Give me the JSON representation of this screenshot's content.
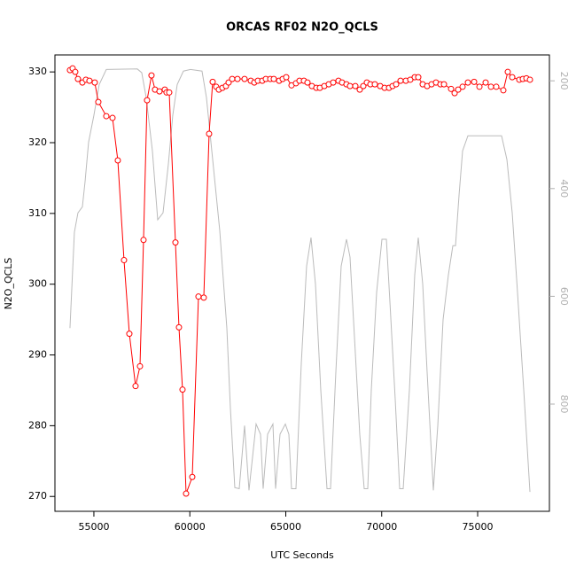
{
  "chart_data": {
    "type": "line",
    "title": "ORCAS RF02 N2O_QCLS",
    "x_label": "UTC Seconds",
    "y_label": "N2O_QCLS",
    "xlim": [
      52970,
      78740
    ],
    "ylim": [
      267.9,
      332.4
    ],
    "y2lim": [
      999,
      152
    ],
    "xticks": [
      55000,
      60000,
      65000,
      70000,
      75000
    ],
    "yticks": [
      270,
      280,
      290,
      300,
      310,
      320,
      330
    ],
    "y2ticks": [
      200,
      400,
      600,
      800
    ],
    "series": [
      {
        "color": "#bbbbbb",
        "axis": "y2",
        "markers": false,
        "x": [
          53753,
          53984,
          54169,
          54400,
          54538,
          54723,
          55000,
          55277,
          55647,
          57263,
          57494,
          57725,
          58049,
          58326,
          58603,
          58880,
          59111,
          59342,
          59665,
          60035,
          60635,
          60866,
          61190,
          61559,
          61929,
          62113,
          62344,
          62575,
          62852,
          63083,
          63453,
          63684,
          63822,
          64053,
          64330,
          64469,
          64700,
          64977,
          65162,
          65300,
          65531,
          65808,
          66085,
          66316,
          66547,
          66824,
          67148,
          67332,
          67609,
          67887,
          68164,
          68348,
          68579,
          68856,
          69087,
          69272,
          69457,
          69734,
          70012,
          70243,
          70427,
          70704,
          70935,
          71120,
          71443,
          71721,
          71905,
          72136,
          72367,
          72691,
          72922,
          73199,
          73476,
          73707,
          73846,
          74031,
          74215,
          74492,
          76247,
          76524,
          76801,
          77078,
          77402,
          77725
        ],
        "values": [
          659,
          481,
          445,
          434,
          388,
          314,
          264,
          207,
          179,
          178,
          185,
          231,
          330,
          458,
          445,
          355,
          264,
          207,
          182,
          179,
          182,
          231,
          346,
          478,
          659,
          807,
          955,
          957,
          840,
          960,
          837,
          856,
          957,
          856,
          837,
          957,
          856,
          837,
          856,
          957,
          957,
          725,
          544,
          491,
          577,
          774,
          957,
          957,
          741,
          544,
          494,
          527,
          675,
          856,
          957,
          957,
          774,
          593,
          494,
          494,
          610,
          791,
          957,
          957,
          774,
          560,
          491,
          577,
          741,
          960,
          840,
          643,
          560,
          506,
          506,
          412,
          330,
          302,
          302,
          346,
          445,
          593,
          774,
          963
        ]
      },
      {
        "color": "#ff0000",
        "axis": "y",
        "markers": true,
        "x": [
          53753,
          53892,
          54030,
          54169,
          54400,
          54584,
          54769,
          55046,
          55231,
          55647,
          55970,
          56247,
          56570,
          56848,
          57171,
          57402,
          57587,
          57771,
          58002,
          58187,
          58418,
          58695,
          58787,
          58926,
          59250,
          59434,
          59619,
          59804,
          60127,
          60450,
          60727,
          61004,
          61190,
          61374,
          61513,
          61698,
          61883,
          62021,
          62206,
          62483,
          62852,
          63176,
          63360,
          63545,
          63776,
          63961,
          64192,
          64377,
          64654,
          64839,
          65023,
          65300,
          65531,
          65716,
          65947,
          66132,
          66362,
          66593,
          66778,
          67009,
          67240,
          67471,
          67748,
          67933,
          68164,
          68348,
          68625,
          68856,
          69041,
          69226,
          69411,
          69642,
          69919,
          70150,
          70381,
          70566,
          70750,
          70981,
          71258,
          71489,
          71721,
          71905,
          72136,
          72367,
          72598,
          72829,
          73060,
          73245,
          73614,
          73800,
          73984,
          74215,
          74492,
          74816,
          75093,
          75416,
          75693,
          75970,
          76339,
          76570,
          76801,
          77171,
          77356,
          77541,
          77725
        ],
        "values": [
          330.25,
          330.5,
          330,
          329,
          328.5,
          328.9,
          328.75,
          328.5,
          325.75,
          323.75,
          323.5,
          317.5,
          303.4,
          293,
          285.6,
          288.4,
          306.25,
          326,
          329.5,
          327.5,
          327.25,
          327.5,
          327.1,
          327.1,
          305.9,
          293.9,
          285.1,
          270.4,
          272.75,
          298.25,
          298.1,
          321.25,
          328.6,
          327.9,
          327.5,
          327.75,
          328,
          328.5,
          329,
          329,
          329,
          328.75,
          328.5,
          328.75,
          328.75,
          329,
          329,
          329,
          328.75,
          329,
          329.25,
          328.1,
          328.4,
          328.75,
          328.75,
          328.5,
          328,
          327.75,
          327.75,
          328,
          328.25,
          328.5,
          328.75,
          328.5,
          328.25,
          328,
          328,
          327.5,
          328,
          328.5,
          328.25,
          328.25,
          328,
          327.75,
          327.75,
          328,
          328.25,
          328.75,
          328.75,
          328.9,
          329.25,
          329.25,
          328.25,
          328,
          328.25,
          328.5,
          328.25,
          328.25,
          327.6,
          327,
          327.5,
          327.9,
          328.5,
          328.6,
          327.9,
          328.5,
          327.9,
          327.9,
          327.4,
          330,
          329.25,
          328.9,
          329,
          329.1,
          328.9
        ]
      }
    ]
  }
}
